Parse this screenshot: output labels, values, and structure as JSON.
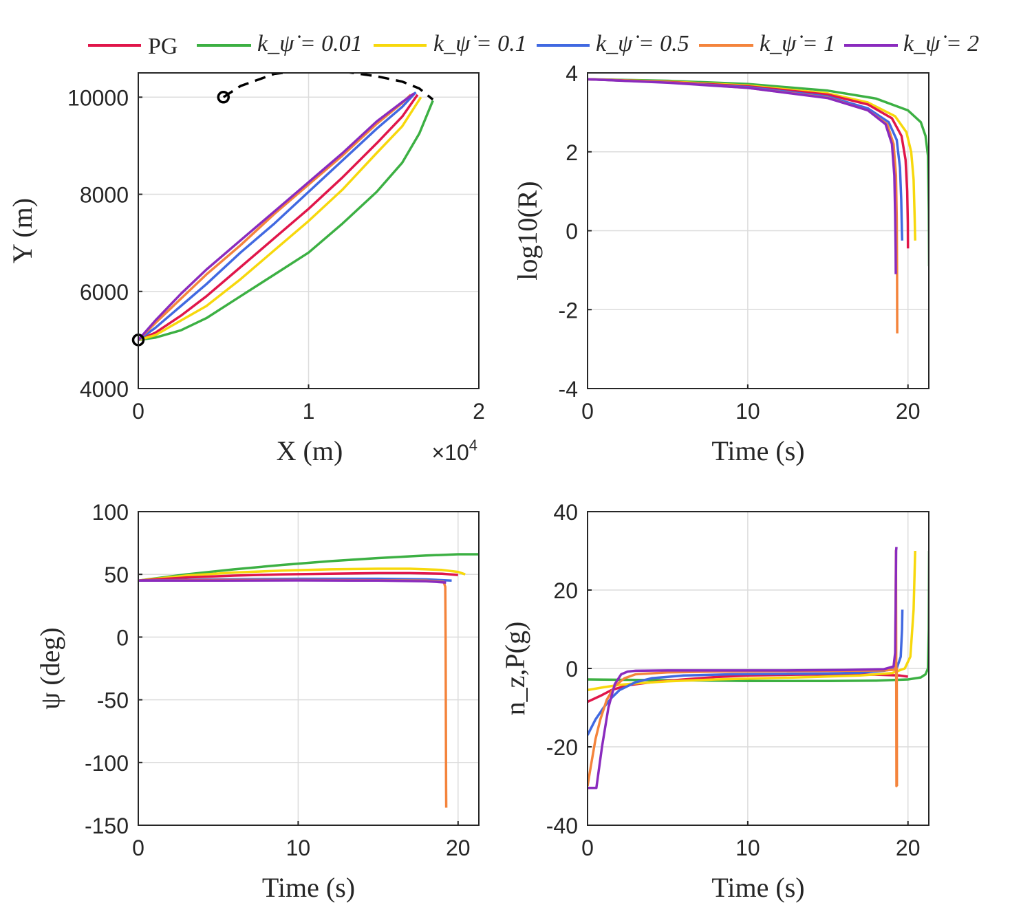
{
  "legend": {
    "entries": [
      {
        "name": "PG",
        "label": "PG",
        "color": "#e0164a"
      },
      {
        "name": "k001",
        "label": "k_ψ̇ = 0.01",
        "color": "#3cb043"
      },
      {
        "name": "k01",
        "label": "k_ψ̇ = 0.1",
        "color": "#f7d80c"
      },
      {
        "name": "k05",
        "label": "k_ψ̇ = 0.5",
        "color": "#4169e1"
      },
      {
        "name": "k1",
        "label": "k_ψ̇ = 1",
        "color": "#f4843c"
      },
      {
        "name": "k2",
        "label": "k_ψ̇ = 2",
        "color": "#8a2bbe"
      }
    ]
  },
  "chart_data": [
    {
      "id": "trajectory",
      "type": "line",
      "xlabel": "X (m)",
      "ylabel": "Y (m)",
      "xlim": [
        0,
        20000
      ],
      "ylim": [
        4000,
        10500
      ],
      "xticks": [
        0,
        10000,
        20000
      ],
      "xtick_labels": [
        "0",
        "1",
        "2"
      ],
      "x_exponent_label": "×10",
      "x_exponent_power": "4",
      "yticks": [
        4000,
        6000,
        8000,
        10000
      ],
      "ytick_labels": [
        "4000",
        "6000",
        "8000",
        "10000"
      ],
      "grid": true,
      "target_path": {
        "x": [
          5000,
          6000,
          8000,
          10000,
          12000,
          14000,
          15500,
          16500,
          17300
        ],
        "y": [
          10000,
          10230,
          10480,
          10560,
          10530,
          10430,
          10320,
          10180,
          9950
        ],
        "style": "dashed",
        "color": "#000000"
      },
      "markers": [
        {
          "x": 5000,
          "y": 10000
        },
        {
          "x": 0,
          "y": 5000
        }
      ],
      "series": [
        {
          "name": "PG",
          "x": [
            0,
            1000,
            2500,
            4000,
            6000,
            8000,
            10000,
            12000,
            14000,
            15500,
            16400
          ],
          "y": [
            5000,
            5150,
            5500,
            5900,
            6500,
            7100,
            7700,
            8350,
            9050,
            9600,
            10050
          ]
        },
        {
          "name": "k001",
          "x": [
            0,
            1000,
            2500,
            4000,
            6000,
            8000,
            10000,
            12000,
            14000,
            15500,
            16500,
            17300
          ],
          "y": [
            5000,
            5050,
            5200,
            5450,
            5900,
            6350,
            6800,
            7400,
            8050,
            8650,
            9250,
            9930
          ]
        },
        {
          "name": "k01",
          "x": [
            0,
            1000,
            2500,
            4000,
            6000,
            8000,
            10000,
            12000,
            14000,
            15500,
            16600
          ],
          "y": [
            5000,
            5100,
            5400,
            5700,
            6250,
            6850,
            7450,
            8100,
            8850,
            9400,
            10000
          ]
        },
        {
          "name": "k05",
          "x": [
            0,
            1000,
            2500,
            4000,
            6000,
            8000,
            10000,
            12000,
            14000,
            15500,
            16300
          ],
          "y": [
            5000,
            5250,
            5700,
            6150,
            6800,
            7400,
            8050,
            8700,
            9350,
            9800,
            10100
          ]
        },
        {
          "name": "k1",
          "x": [
            0,
            1000,
            2500,
            4000,
            6000,
            8000,
            10000,
            12000,
            14000,
            15500,
            16000
          ],
          "y": [
            5000,
            5350,
            5850,
            6350,
            6950,
            7600,
            8200,
            8800,
            9450,
            9880,
            10050
          ]
        },
        {
          "name": "k2",
          "x": [
            0,
            1000,
            2500,
            4000,
            6000,
            8000,
            10000,
            12000,
            14000,
            15500,
            16200
          ],
          "y": [
            5000,
            5400,
            5950,
            6450,
            7050,
            7650,
            8250,
            8850,
            9500,
            9900,
            10080
          ]
        }
      ]
    },
    {
      "id": "range",
      "type": "line",
      "xlabel": "Time (s)",
      "ylabel": "log10(R)",
      "xlim": [
        0,
        21.3
      ],
      "ylim": [
        -4,
        4
      ],
      "xticks": [
        0,
        10,
        20
      ],
      "xtick_labels": [
        "0",
        "10",
        "20"
      ],
      "yticks": [
        -4,
        -2,
        0,
        2,
        4
      ],
      "ytick_labels": [
        "-4",
        "-2",
        "0",
        "2",
        "4"
      ],
      "grid": true,
      "series": [
        {
          "name": "k001",
          "x": [
            0,
            5,
            10,
            15,
            18,
            20,
            20.8,
            21.1,
            21.25,
            21.3,
            21.32
          ],
          "y": [
            3.84,
            3.8,
            3.72,
            3.55,
            3.35,
            3.05,
            2.75,
            2.4,
            1.9,
            0.5,
            -0.9
          ]
        },
        {
          "name": "k01",
          "x": [
            0,
            5,
            10,
            15,
            17.5,
            19.2,
            19.9,
            20.2,
            20.35,
            20.42,
            20.45
          ],
          "y": [
            3.84,
            3.78,
            3.68,
            3.48,
            3.25,
            2.9,
            2.5,
            2.0,
            1.3,
            0.3,
            -0.25
          ]
        },
        {
          "name": "PG",
          "x": [
            0,
            5,
            10,
            15,
            17.5,
            19,
            19.6,
            19.85,
            19.95,
            19.99,
            20.0
          ],
          "y": [
            3.84,
            3.77,
            3.66,
            3.45,
            3.2,
            2.85,
            2.4,
            1.8,
            1.0,
            0.2,
            -0.45
          ]
        },
        {
          "name": "k05",
          "x": [
            0,
            5,
            10,
            15,
            17.5,
            18.8,
            19.3,
            19.5,
            19.58,
            19.62,
            19.64
          ],
          "y": [
            3.84,
            3.76,
            3.64,
            3.4,
            3.1,
            2.75,
            2.3,
            1.6,
            0.8,
            0.0,
            -0.25
          ]
        },
        {
          "name": "k1",
          "x": [
            0,
            5,
            10,
            15,
            17.5,
            18.7,
            19.1,
            19.25,
            19.3,
            19.32,
            19.33
          ],
          "y": [
            3.84,
            3.76,
            3.62,
            3.37,
            3.05,
            2.7,
            2.2,
            1.4,
            0.3,
            -1.2,
            -2.6
          ]
        },
        {
          "name": "k2",
          "x": [
            0,
            5,
            10,
            15,
            17.5,
            18.6,
            19.0,
            19.15,
            19.2,
            19.23,
            19.24
          ],
          "y": [
            3.84,
            3.75,
            3.62,
            3.36,
            3.05,
            2.7,
            2.2,
            1.4,
            0.4,
            -0.5,
            -1.1
          ]
        }
      ]
    },
    {
      "id": "heading",
      "type": "line",
      "xlabel": "Time (s)",
      "ylabel": "ψ (deg)",
      "xlim": [
        0,
        21.3
      ],
      "ylim": [
        -150,
        100
      ],
      "xticks": [
        0,
        10,
        20
      ],
      "xtick_labels": [
        "0",
        "10",
        "20"
      ],
      "yticks": [
        -150,
        -100,
        -50,
        0,
        50,
        100
      ],
      "ytick_labels": [
        "-150",
        "-100",
        "-50",
        "0",
        "50",
        "100"
      ],
      "grid": true,
      "series": [
        {
          "name": "k001",
          "x": [
            0,
            3,
            6,
            9,
            12,
            15,
            18,
            20,
            21.3
          ],
          "y": [
            45,
            50,
            54,
            57.5,
            60.5,
            63,
            65,
            66,
            66
          ]
        },
        {
          "name": "k01",
          "x": [
            0,
            3,
            6,
            9,
            12,
            15,
            17,
            19,
            20,
            20.45
          ],
          "y": [
            45,
            49,
            51.5,
            53,
            54,
            54.5,
            54.5,
            53.5,
            52,
            50
          ]
        },
        {
          "name": "PG",
          "x": [
            0,
            3,
            6,
            9,
            12,
            15,
            17,
            19,
            20
          ],
          "y": [
            45,
            47.5,
            49,
            50,
            50.5,
            51,
            51,
            50.5,
            49.5
          ]
        },
        {
          "name": "k05",
          "x": [
            0,
            5,
            10,
            15,
            18,
            19.6
          ],
          "y": [
            45,
            46,
            46.5,
            46.5,
            46,
            45
          ]
        },
        {
          "name": "k1",
          "x": [
            0,
            5,
            10,
            15,
            18,
            19.1,
            19.2,
            19.22,
            19.24,
            19.25,
            19.26
          ],
          "y": [
            45,
            45.5,
            45.5,
            45.3,
            45,
            44,
            40,
            0,
            -70,
            -120,
            -136
          ]
        },
        {
          "name": "k2",
          "x": [
            0,
            5,
            10,
            15,
            18,
            19.25
          ],
          "y": [
            45,
            45,
            45.2,
            45,
            44.5,
            43.5
          ]
        }
      ]
    },
    {
      "id": "acceleration",
      "type": "line",
      "xlabel": "Time (s)",
      "ylabel": "n_z,P(g)",
      "xlim": [
        0,
        21.3
      ],
      "ylim": [
        -40,
        40
      ],
      "xticks": [
        0,
        10,
        20
      ],
      "xtick_labels": [
        "0",
        "10",
        "20"
      ],
      "yticks": [
        -40,
        -20,
        0,
        20,
        40
      ],
      "ytick_labels": [
        "-40",
        "-20",
        "0",
        "20",
        "40"
      ],
      "grid": true,
      "series": [
        {
          "name": "k001",
          "x": [
            0,
            5,
            10,
            15,
            18,
            20,
            20.8,
            21.1,
            21.25,
            21.3,
            21.32
          ],
          "y": [
            -2.8,
            -3.0,
            -3.2,
            -3.2,
            -3.1,
            -2.8,
            -2.3,
            -1.5,
            0,
            10,
            30
          ]
        },
        {
          "name": "PG",
          "x": [
            0,
            0.8,
            1.5,
            2.5,
            4,
            6,
            8,
            10,
            13,
            16,
            18,
            19.5,
            20.0
          ],
          "y": [
            -8.5,
            -7,
            -5.5,
            -4.3,
            -3.5,
            -2.8,
            -2.2,
            -1.8,
            -1.6,
            -1.5,
            -1.6,
            -1.8,
            -2.1
          ]
        },
        {
          "name": "k01",
          "x": [
            0,
            1,
            2,
            3,
            5,
            8,
            11,
            14,
            17,
            19,
            19.8,
            20.15,
            20.35,
            20.45
          ],
          "y": [
            -5.5,
            -4.8,
            -4.2,
            -3.8,
            -3.3,
            -2.8,
            -2.5,
            -2.2,
            -1.8,
            -1.2,
            0,
            3,
            15,
            30
          ]
        },
        {
          "name": "k05",
          "x": [
            0,
            0.5,
            1,
            1.5,
            2,
            3,
            4,
            6,
            9,
            12,
            15,
            17,
            18.5,
            19.3,
            19.55,
            19.63,
            19.65
          ],
          "y": [
            -17,
            -13,
            -10,
            -7.5,
            -5.5,
            -3.5,
            -2.5,
            -1.8,
            -1.5,
            -1.4,
            -1.3,
            -1.1,
            -0.6,
            0,
            3,
            10,
            15
          ]
        },
        {
          "name": "k1",
          "x": [
            0,
            0.2,
            0.5,
            0.8,
            1.2,
            1.7,
            2.3,
            3,
            5,
            8,
            12,
            16,
            18.5,
            19.2,
            19.25,
            19.28,
            19.3,
            19.31
          ],
          "y": [
            -30,
            -25,
            -18,
            -13,
            -8,
            -4.5,
            -2.5,
            -1.5,
            -1.0,
            -0.8,
            -0.7,
            -0.6,
            -0.5,
            -0.3,
            30,
            -30,
            0,
            -30
          ]
        },
        {
          "name": "k2",
          "x": [
            0,
            0.1,
            0.5,
            0.55,
            0.9,
            1.3,
            1.7,
            2.1,
            2.5,
            3,
            5,
            8,
            12,
            16,
            18.5,
            19.1,
            19.2,
            19.23,
            19.26,
            19.28
          ],
          "y": [
            -30.5,
            -30.5,
            -30.5,
            -30.5,
            -20,
            -10,
            -4,
            -1.5,
            -0.8,
            -0.6,
            -0.5,
            -0.5,
            -0.5,
            -0.4,
            -0.2,
            0.5,
            4,
            15,
            30,
            31
          ]
        }
      ]
    }
  ]
}
